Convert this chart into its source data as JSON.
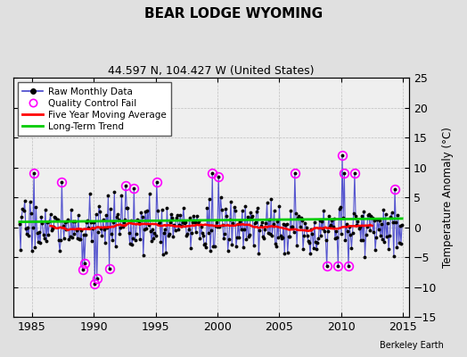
{
  "title": "BEAR LODGE WYOMING",
  "subtitle": "44.597 N, 104.427 W (United States)",
  "ylabel": "Temperature Anomaly (°C)",
  "credit": "Berkeley Earth",
  "xlim": [
    1983.5,
    2015.5
  ],
  "ylim": [
    -15,
    25
  ],
  "yticks": [
    -15,
    -10,
    -5,
    0,
    5,
    10,
    15,
    20,
    25
  ],
  "xticks": [
    1985,
    1990,
    1995,
    2000,
    2005,
    2010,
    2015
  ],
  "bg_color": "#e0e0e0",
  "plot_bg_color": "#efefef",
  "raw_line_color": "#4444cc",
  "raw_dot_color": "#000000",
  "qc_color": "#ff00ff",
  "moving_avg_color": "#ff0000",
  "trend_color": "#00cc00",
  "seed": 17
}
